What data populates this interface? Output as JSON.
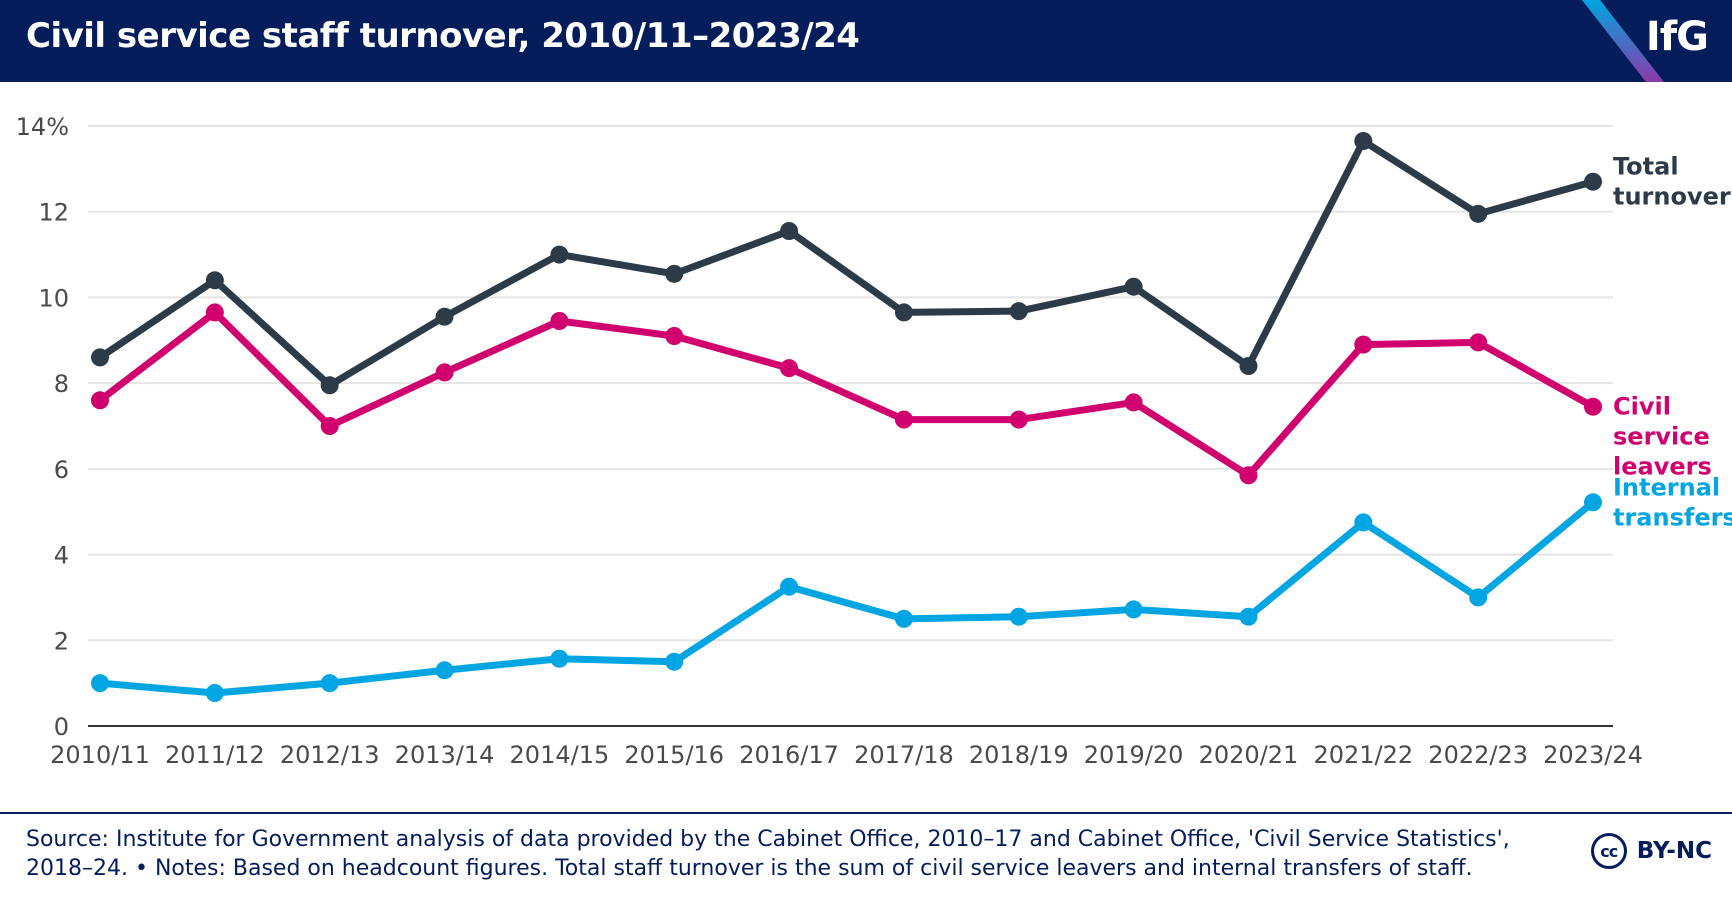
{
  "header": {
    "title": "Civil service staff turnover, 2010/11–2023/24",
    "logo": "IfG"
  },
  "colors": {
    "header_bg": "#061d5c",
    "total": "#2d3a48",
    "leavers": "#d1006f",
    "transfers": "#00a5e1",
    "grid": "#e4e4e4",
    "axis_text": "#4a4a4a"
  },
  "chart_data": {
    "type": "line",
    "title": "Civil service staff turnover, 2010/11–2023/24",
    "xlabel": "",
    "ylabel": "",
    "ylim": [
      0,
      14
    ],
    "yticks": [
      {
        "value": 0,
        "label": "0"
      },
      {
        "value": 2,
        "label": "2"
      },
      {
        "value": 4,
        "label": "4"
      },
      {
        "value": 6,
        "label": "6"
      },
      {
        "value": 8,
        "label": "8"
      },
      {
        "value": 10,
        "label": "10"
      },
      {
        "value": 12,
        "label": "12"
      },
      {
        "value": 14,
        "label": "14%"
      }
    ],
    "grid": true,
    "categories": [
      "2010/11",
      "2011/12",
      "2012/13",
      "2013/14",
      "2014/15",
      "2015/16",
      "2016/17",
      "2017/18",
      "2018/19",
      "2019/20",
      "2020/21",
      "2021/22",
      "2022/23",
      "2023/24"
    ],
    "series": [
      {
        "key": "total",
        "name": "Total turnover",
        "label_lines": [
          "Total",
          "turnover"
        ],
        "color": "#2d3a48",
        "values": [
          8.6,
          10.4,
          7.95,
          9.55,
          11.0,
          10.55,
          11.55,
          9.65,
          9.68,
          10.25,
          8.4,
          13.65,
          11.95,
          12.7
        ]
      },
      {
        "key": "leavers",
        "name": "Civil service leavers",
        "label_lines": [
          "Civil",
          "service",
          "leavers"
        ],
        "color": "#d1006f",
        "values": [
          7.6,
          9.65,
          7.0,
          8.25,
          9.45,
          9.1,
          8.35,
          7.15,
          7.15,
          7.55,
          5.85,
          8.9,
          8.95,
          7.45
        ]
      },
      {
        "key": "transfers",
        "name": "Internal transfers",
        "label_lines": [
          "Internal",
          "transfers"
        ],
        "color": "#00a5e1",
        "values": [
          1.0,
          0.77,
          1.0,
          1.3,
          1.57,
          1.5,
          3.25,
          2.5,
          2.55,
          2.72,
          2.55,
          4.75,
          3.0,
          5.22
        ]
      }
    ]
  },
  "footer": {
    "source": "Source: Institute for Government analysis of data provided by the Cabinet Office, 2010–17 and Cabinet Office, 'Civil Service Statistics', 2018–24. • Notes: Based on headcount figures. Total staff turnover is the sum of civil service leavers and internal transfers of staff.",
    "license_icon": "cc",
    "license": "BY-NC"
  }
}
